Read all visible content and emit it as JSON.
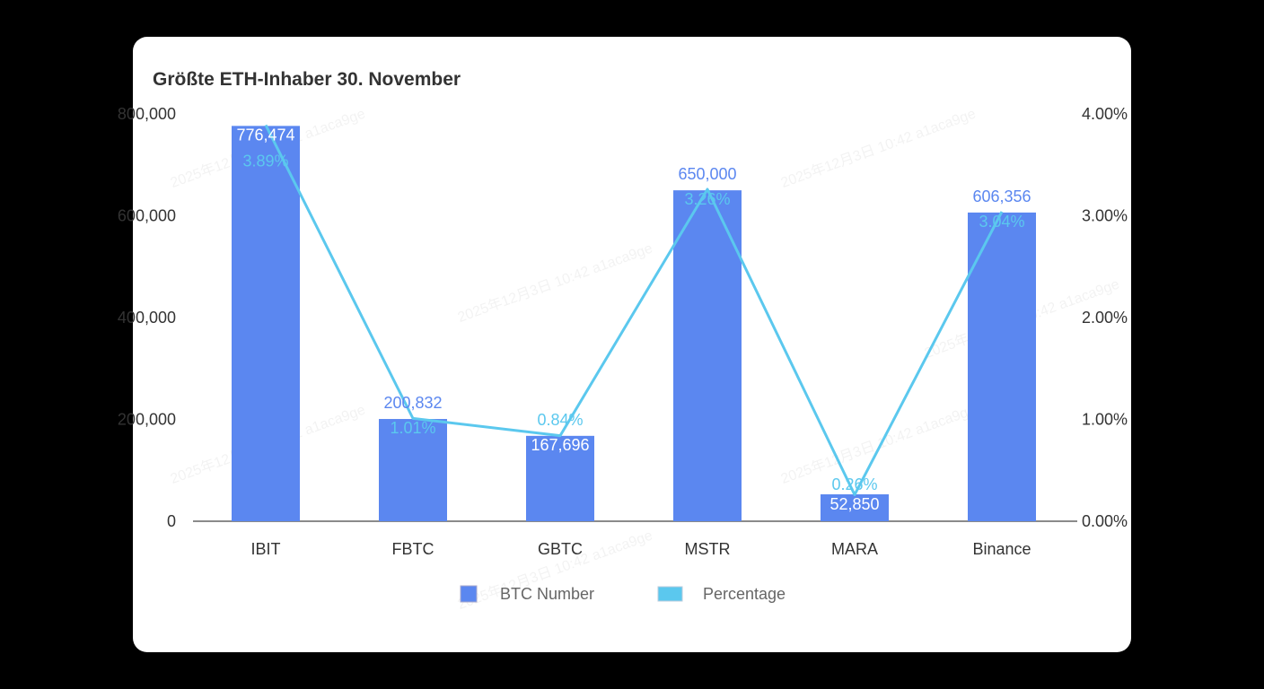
{
  "chart_data": {
    "type": "bar+line",
    "title": "Größte ETH-Inhaber 30. November",
    "categories": [
      "IBIT",
      "FBTC",
      "GBTC",
      "MSTR",
      "MARA",
      "Binance"
    ],
    "series": [
      {
        "name": "BTC Number",
        "type": "bar",
        "axis": "left",
        "values": [
          776474,
          200832,
          167696,
          650000,
          52850,
          606356
        ],
        "labels": [
          "776,474",
          "200,832",
          "167,696",
          "650,000",
          "52,850",
          "606,356"
        ]
      },
      {
        "name": "Percentage",
        "type": "line",
        "axis": "right",
        "values": [
          3.89,
          1.01,
          0.84,
          3.26,
          0.26,
          3.04
        ],
        "labels": [
          "3.89%",
          "1.01%",
          "0.84%",
          "3.26%",
          "0.26%",
          "3.04%"
        ]
      }
    ],
    "left_axis": {
      "ylim": [
        0,
        800000
      ],
      "ticks": [
        "0",
        "200,000",
        "400,000",
        "600,000",
        "800,000"
      ]
    },
    "right_axis": {
      "ylim": [
        0,
        4
      ],
      "ticks": [
        "0.00%",
        "1.00%",
        "2.00%",
        "3.00%",
        "4.00%"
      ]
    },
    "legend": "bottom",
    "grid": false,
    "colors": {
      "bar": "#5B87F0",
      "line": "#5BC8EE"
    }
  },
  "watermark": "2025年12月3日 10:42 a1aca9ge"
}
